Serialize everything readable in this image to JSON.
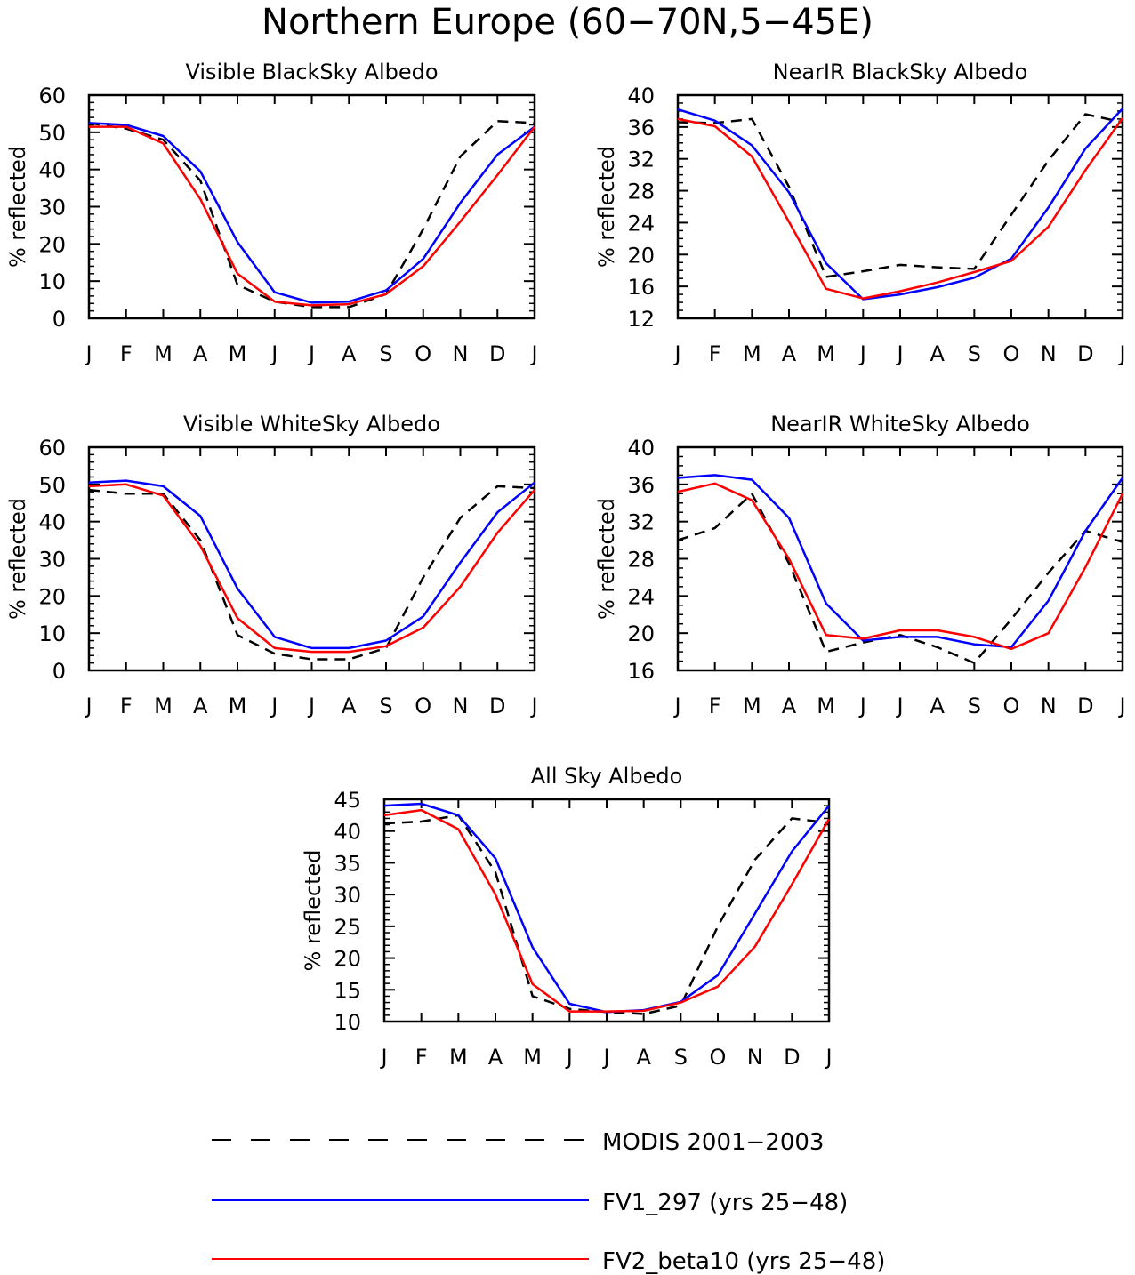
{
  "figure_title": "Northern Europe (60−70N,5−45E)",
  "colors": {
    "modis": "#000000",
    "fv1": "#0000ff",
    "fv2": "#ff0000",
    "axis": "#000000"
  },
  "legend": [
    {
      "key": "modis",
      "label": "MODIS 2001−2003",
      "style": "dashed"
    },
    {
      "key": "fv1",
      "label": "FV1_297 (yrs 25−48)",
      "style": "solid"
    },
    {
      "key": "fv2",
      "label": "FV2_beta10 (yrs 25−48)",
      "style": "solid"
    }
  ],
  "chart_data": [
    {
      "type": "line",
      "title": "Visible BlackSky Albedo",
      "ylabel": "% reflected",
      "xlabel": "",
      "categories": [
        "J",
        "F",
        "M",
        "A",
        "M",
        "J",
        "J",
        "A",
        "S",
        "O",
        "N",
        "D",
        "J"
      ],
      "ylim": [
        0,
        60
      ],
      "yticks": [
        0,
        10,
        20,
        30,
        40,
        50,
        60
      ],
      "yminor": 2,
      "series": [
        {
          "name": "MODIS 2001−2003",
          "key": "modis",
          "values": [
            52.5,
            51,
            48,
            37,
            9,
            4.5,
            3,
            3,
            6.5,
            24,
            43.5,
            53,
            52.5
          ]
        },
        {
          "name": "FV1_297 (yrs 25−48)",
          "key": "fv1",
          "values": [
            52.5,
            52,
            49,
            39.5,
            20.5,
            7,
            4.2,
            4.5,
            7.5,
            16,
            31,
            44,
            51.5
          ]
        },
        {
          "name": "FV2_beta10 (yrs 25−48)",
          "key": "fv2",
          "values": [
            51.5,
            51.5,
            47,
            32,
            12,
            4.5,
            3.5,
            3.8,
            6.5,
            14,
            26,
            38.5,
            51.5
          ]
        }
      ]
    },
    {
      "type": "line",
      "title": "NearIR BlackSky Albedo",
      "ylabel": "% reflected",
      "xlabel": "",
      "categories": [
        "J",
        "F",
        "M",
        "A",
        "M",
        "J",
        "J",
        "A",
        "S",
        "O",
        "N",
        "D",
        "J"
      ],
      "ylim": [
        12,
        40
      ],
      "yticks": [
        12,
        16,
        20,
        24,
        28,
        32,
        36,
        40
      ],
      "yminor": 1,
      "series": [
        {
          "name": "MODIS 2001−2003",
          "key": "modis",
          "values": [
            36.6,
            36.5,
            37,
            28.5,
            17.2,
            17.9,
            18.7,
            18.4,
            18.2,
            25,
            31.8,
            37.6,
            36.6
          ]
        },
        {
          "name": "FV1_297 (yrs 25−48)",
          "key": "fv1",
          "values": [
            38.2,
            36.8,
            33.7,
            27.8,
            18.9,
            14.4,
            15,
            15.9,
            17.1,
            19.5,
            25.9,
            33.3,
            38.3
          ]
        },
        {
          "name": "FV2_beta10 (yrs 25−48)",
          "key": "fv2",
          "values": [
            37,
            36.1,
            32.3,
            24.1,
            15.7,
            14.5,
            15.4,
            16.5,
            17.8,
            19.2,
            23.5,
            30.6,
            37.1
          ]
        }
      ]
    },
    {
      "type": "line",
      "title": "Visible WhiteSky Albedo",
      "ylabel": "% reflected",
      "xlabel": "",
      "categories": [
        "J",
        "F",
        "M",
        "A",
        "M",
        "J",
        "J",
        "A",
        "S",
        "O",
        "N",
        "D",
        "J"
      ],
      "ylim": [
        0,
        60
      ],
      "yticks": [
        0,
        10,
        20,
        30,
        40,
        50,
        60
      ],
      "yminor": 2,
      "series": [
        {
          "name": "MODIS 2001−2003",
          "key": "modis",
          "values": [
            48.5,
            47.5,
            47.5,
            35,
            9.5,
            4.5,
            3,
            3,
            6,
            25,
            41,
            49.5,
            49
          ]
        },
        {
          "name": "FV1_297 (yrs 25−48)",
          "key": "fv1",
          "values": [
            50.5,
            51,
            49.5,
            41.5,
            22,
            9,
            6,
            6,
            8,
            14.5,
            29,
            42.5,
            50.5
          ]
        },
        {
          "name": "FV2_beta10 (yrs 25−48)",
          "key": "fv2",
          "values": [
            49.5,
            50,
            47,
            33.5,
            14,
            6,
            5,
            5,
            6.5,
            11.5,
            22.5,
            37,
            48.5
          ]
        }
      ]
    },
    {
      "type": "line",
      "title": "NearIR WhiteSky Albedo",
      "ylabel": "% reflected",
      "xlabel": "",
      "categories": [
        "J",
        "F",
        "M",
        "A",
        "M",
        "J",
        "J",
        "A",
        "S",
        "O",
        "N",
        "D",
        "J"
      ],
      "ylim": [
        16,
        40
      ],
      "yticks": [
        16,
        20,
        24,
        28,
        32,
        36,
        40
      ],
      "yminor": 1,
      "series": [
        {
          "name": "MODIS 2001−2003",
          "key": "modis",
          "values": [
            30,
            31.3,
            35,
            27.5,
            18,
            19,
            19.8,
            18.5,
            16.8,
            21.5,
            26.5,
            31,
            29.8
          ]
        },
        {
          "name": "FV1_297 (yrs 25−48)",
          "key": "fv1",
          "values": [
            36.7,
            37,
            36.5,
            32.4,
            23.2,
            19.2,
            19.6,
            19.6,
            18.8,
            18.5,
            23.5,
            31,
            36.7
          ]
        },
        {
          "name": "FV2_beta10 (yrs 25−48)",
          "key": "fv2",
          "values": [
            35.2,
            36.1,
            34.3,
            28,
            19.8,
            19.4,
            20.3,
            20.3,
            19.6,
            18.3,
            20,
            27.1,
            35
          ]
        }
      ]
    },
    {
      "type": "line",
      "title": "All Sky Albedo",
      "ylabel": "% reflected",
      "xlabel": "",
      "categories": [
        "J",
        "F",
        "M",
        "A",
        "M",
        "J",
        "J",
        "A",
        "S",
        "O",
        "N",
        "D",
        "J"
      ],
      "ylim": [
        10,
        45
      ],
      "yticks": [
        10,
        15,
        20,
        25,
        30,
        35,
        40,
        45
      ],
      "yminor": 1,
      "series": [
        {
          "name": "MODIS 2001−2003",
          "key": "modis",
          "values": [
            41.2,
            41.5,
            42.5,
            33.5,
            14,
            12,
            11.5,
            11.2,
            12.5,
            25,
            35.5,
            42,
            41.3
          ]
        },
        {
          "name": "FV1_297 (yrs 25−48)",
          "key": "fv1",
          "values": [
            44,
            44.3,
            42.5,
            35.7,
            21.7,
            12.8,
            11.5,
            11.8,
            13.1,
            17.3,
            27,
            36.8,
            44
          ]
        },
        {
          "name": "FV2_beta10 (yrs 25−48)",
          "key": "fv2",
          "values": [
            42.5,
            43.3,
            40.3,
            30,
            15.9,
            11.6,
            11.6,
            11.7,
            13,
            15.5,
            21.8,
            31.6,
            41.9
          ]
        }
      ]
    }
  ]
}
